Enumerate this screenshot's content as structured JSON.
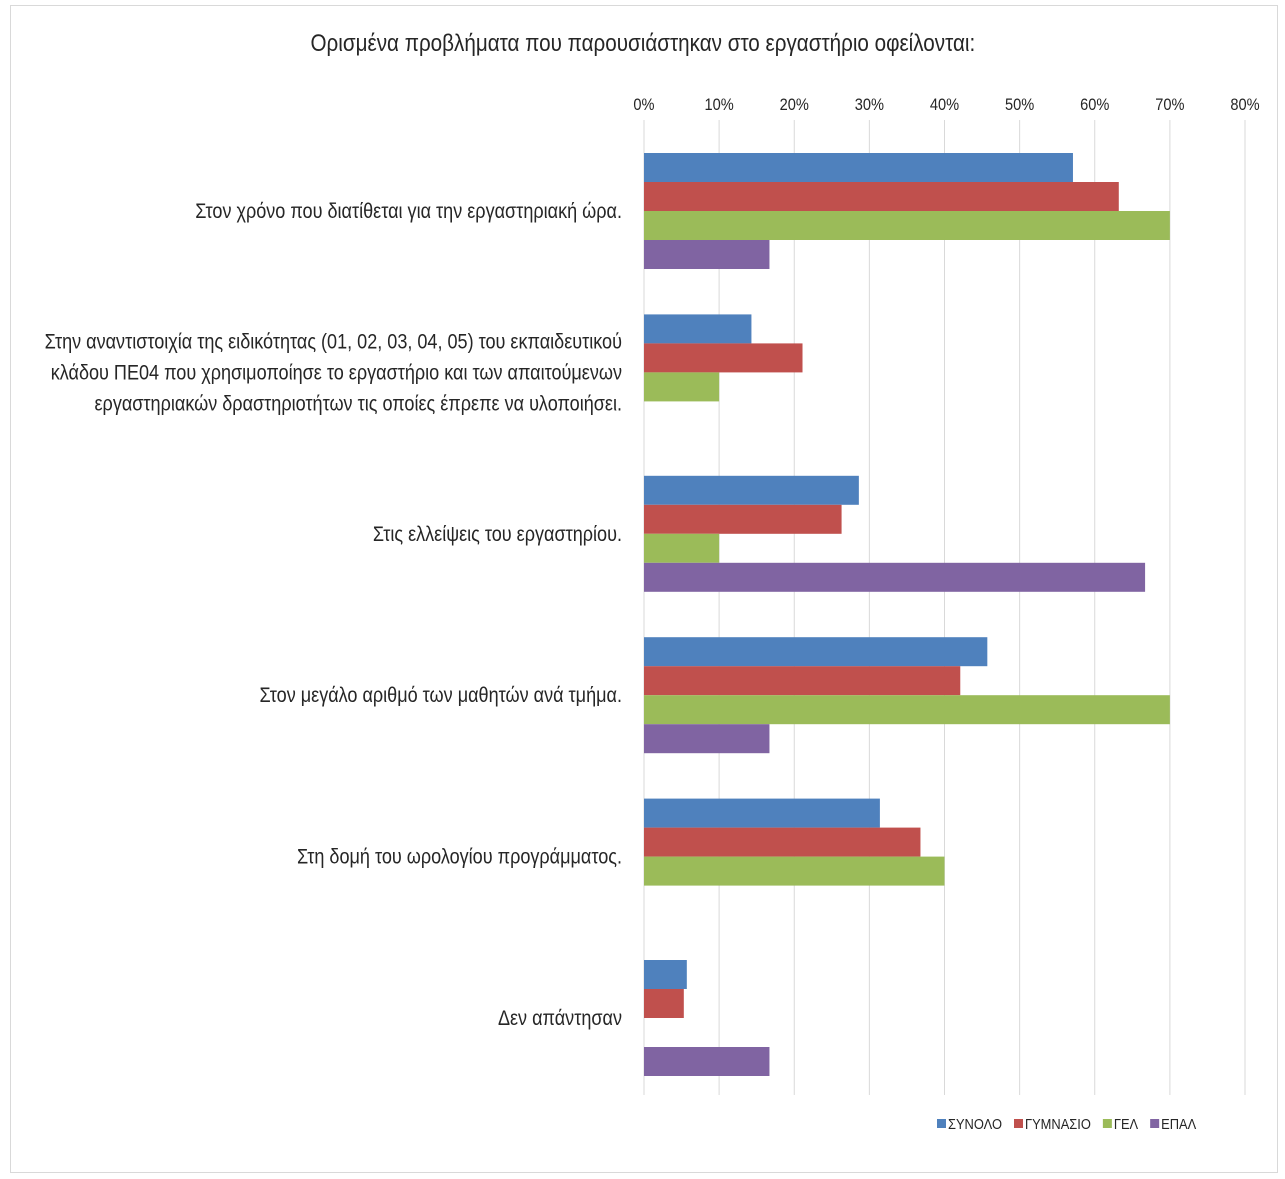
{
  "chart_data": {
    "type": "bar",
    "orientation": "horizontal",
    "title": "Ορισμένα προβλήματα που παρουσιάστηκαν στο εργαστήριο  οφείλονται:",
    "categories": [
      "Στον χρόνο που διατίθεται για την εργαστηριακή ώρα.",
      "Στην αναντιστοιχία της ειδικότητας (01, 02, 03, 04, 05) του εκπαιδευτικού κλάδου ΠΕ04 που χρησιμοποίησε το εργαστήριο και των απαιτούμενων εργαστηριακών  δραστηριοτήτων τις οποίες έπρεπε να υλοποιήσει.",
      "Στις ελλείψεις του εργαστηρίου.",
      "Στον μεγάλο αριθμό των μαθητών ανά τμήμα.",
      "Στη δομή του ωρολογίου προγράμματος.",
      "Δεν απάντησαν"
    ],
    "category_lines": [
      [
        "Στον χρόνο που διατίθεται για την εργαστηριακή ώρα."
      ],
      [
        "Στην αναντιστοιχία της ειδικότητας (01, 02, 03, 04, 05) του εκπαιδευτικού",
        "κλάδου ΠΕ04 που χρησιμοποίησε το εργαστήριο και των απαιτούμενων",
        "εργαστηριακών  δραστηριοτήτων τις οποίες έπρεπε να υλοποιήσει."
      ],
      [
        "Στις ελλείψεις του εργαστηρίου."
      ],
      [
        "Στον μεγάλο αριθμό των μαθητών ανά τμήμα."
      ],
      [
        "Στη δομή του ωρολογίου προγράμματος."
      ],
      [
        "Δεν απάντησαν"
      ]
    ],
    "series": [
      {
        "name": "ΣΥΝΟΛΟ",
        "color": "#4f81bd",
        "values": [
          57.1,
          14.3,
          28.6,
          45.7,
          31.4,
          5.7
        ]
      },
      {
        "name": "ΓΥΜΝΑΣΙΟ",
        "color": "#c0504d",
        "values": [
          63.2,
          21.1,
          26.3,
          42.1,
          36.8,
          5.3
        ]
      },
      {
        "name": "ΓΕΛ",
        "color": "#9bbb59",
        "values": [
          70.0,
          10.0,
          10.0,
          70.0,
          40.0,
          0
        ]
      },
      {
        "name": "ΕΠΑΛ",
        "color": "#8064a2",
        "values": [
          16.7,
          0,
          66.7,
          16.7,
          0,
          16.7
        ]
      }
    ],
    "x_axis": {
      "min": 0,
      "max": 80,
      "step": 10,
      "position": "top",
      "tick_labels": [
        "0%",
        "10%",
        "20%",
        "30%",
        "40%",
        "50%",
        "60%",
        "70%",
        "80%"
      ]
    },
    "xlabel": "",
    "ylabel": "",
    "gridlines": true,
    "legend_position": "bottom-right"
  }
}
